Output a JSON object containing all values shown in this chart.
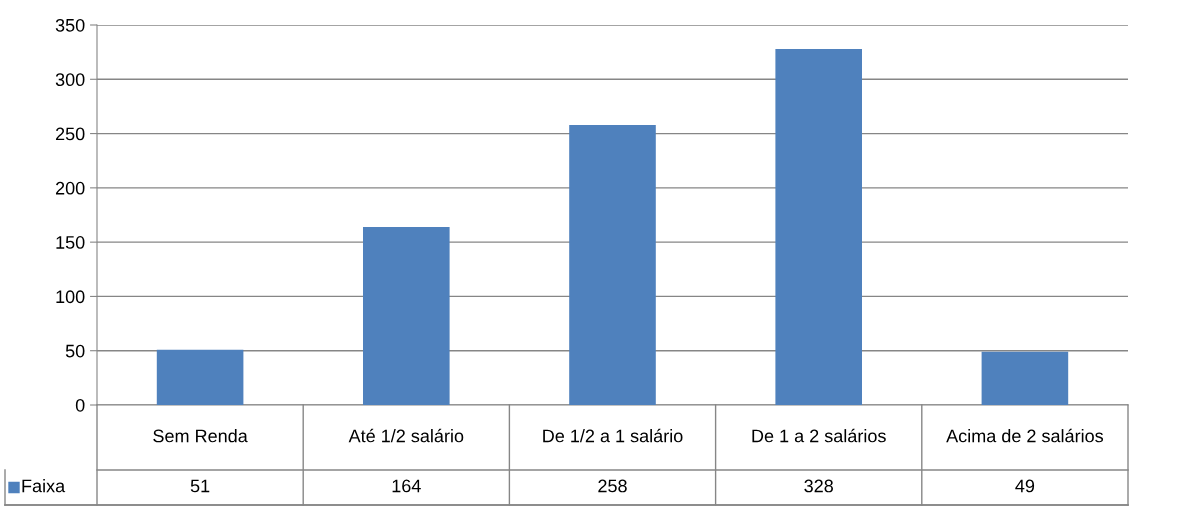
{
  "chart_data": {
    "type": "bar",
    "categories": [
      "Sem Renda",
      "Até 1/2 salário",
      "De 1/2 a 1 salário",
      "De 1 a 2 salários",
      "Acima de 2 salários"
    ],
    "series": [
      {
        "name": "Faixa",
        "color": "#4f81bd",
        "values": [
          51,
          164,
          258,
          328,
          49
        ]
      }
    ],
    "ylim": [
      0,
      350
    ],
    "yticks": [
      0,
      50,
      100,
      150,
      200,
      250,
      300,
      350
    ],
    "grid": "y",
    "data_labels": true,
    "legend": "bottom left"
  }
}
